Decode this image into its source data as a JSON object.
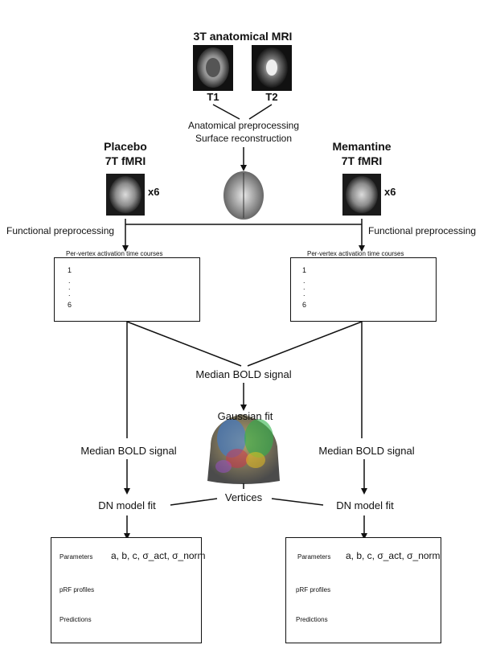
{
  "anatomical": {
    "title": "3T anatomical MRI",
    "t1": "T1",
    "t2": "T2"
  },
  "preprocessing": {
    "line1": "Anatomical preprocessing",
    "line2": "Surface reconstruction"
  },
  "placebo": {
    "line1": "Placebo",
    "line2": "7T fMRI",
    "count": "x6"
  },
  "memantine": {
    "line1": "Memantine",
    "line2": "7T fMRI",
    "count": "x6"
  },
  "functional_left": "Functional preprocessing",
  "functional_right": "Functional preprocessing",
  "timecourse_box": {
    "title": "Per-vertex  activation time courses",
    "first": "1",
    "last": "6",
    "dot": "."
  },
  "center": {
    "median": "Median BOLD signal",
    "gaussian": "Gaussian fit",
    "vertices": "Vertices"
  },
  "left_branch": {
    "median": "Median BOLD signal",
    "dn": "DN model fit"
  },
  "right_branch": {
    "median": "Median BOLD signal",
    "dn": "DN model fit"
  },
  "results_box": {
    "parameters_label": "Parameters",
    "parameters_value": "a, b, c, σ_act, σ_norm",
    "prf_label": "pRF profiles",
    "predictions_label": "Predictions"
  },
  "colors": {
    "placebo": "#3b5fd6",
    "memantine": "#c0272d",
    "line": "#111111"
  }
}
